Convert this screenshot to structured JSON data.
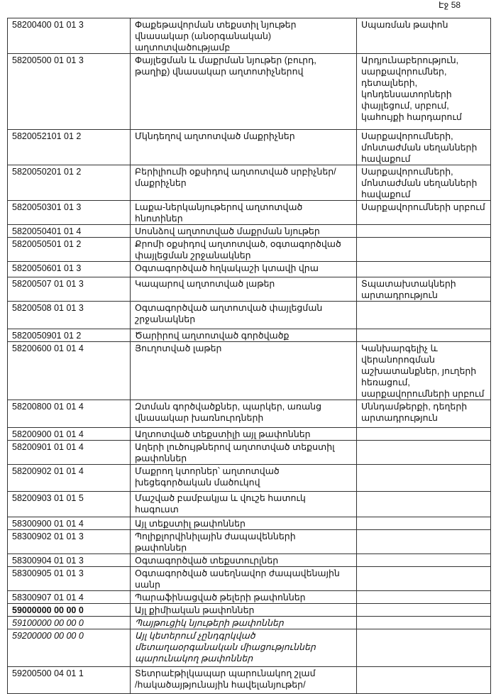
{
  "page_number": "Էջ 58",
  "rows": [
    {
      "code": "58200400 01 01 3",
      "name": "Փաքեթավորման տեքստիլ նյութեր\nվնասակար (անօրգանական)\nաղտոտվածությամբ",
      "activity": "Սպառման թափոն"
    },
    {
      "code": "58200500 01 01 3",
      "name": "Փայլեցման և մաքրման  նյութեր (բուրդ,\nթաղիք) վնասակար աղտոտիչներով",
      "activity": "Արդյունաբերություն,\nսարքավորումներ,\nդետալների,\nկոնդենսատորների\nփայլեցում, սրբում,\nկահույքի հարդարում"
    },
    {
      "code": "5820052101 01 2",
      "name": "Մկնդեղով աղտոտված մաքրիչներ",
      "activity": "Սարքավորումների,\nմոնտաժման սեղանների\nհավաքում"
    },
    {
      "code": "5820050201 01 2",
      "name": "Բերիլիումի օքսիդով աղտոտված սրբիչներ/\nմաքրիչներ",
      "activity": "Սարքավորումների,\nմոնտաժման սեղանների\nհավաքում"
    },
    {
      "code": "5820050301 01 3",
      "name": "Լաքա-ներկանյութերով աղտոտված\nհնոտիներ",
      "activity": "Սարքավորումների սրբում"
    },
    {
      "code": "5820050401 01 4",
      "name": "Սոսնձով  աղտոտված մաքրման նյութեր",
      "activity": ""
    },
    {
      "code": "5820050501 01 2",
      "name": "Քրոմի օքսիդով աղտոտված, օգտագործված\nփայլեցման շրջանակներ",
      "activity": ""
    },
    {
      "code": "5820050601 01 3",
      "name": "Օգտագործված հղկակաշի  կտավի  վրա",
      "activity": ""
    },
    {
      "code": "58200507 01 01 3",
      "name": "Կապարով աղտոտված լաթեր",
      "activity": "Տպատախտակների\nարտադրություն"
    },
    {
      "code": "58200508 01 01 3",
      "name": "Օգտագործված աղտոտված փայլեցման\nշրջանակներ",
      "activity": ""
    },
    {
      "code": "5820050901 01 2",
      "name": "Ծարիրով աղտոտված գործվածք",
      "activity": ""
    },
    {
      "code": "58200600 01 01 4",
      "name": "Յուղոտված լաթեր",
      "activity": "Կանխարգելիչ և\nվերանորոգման\nաշխատանքներ, յուղերի\nհեռացում,\nսարքավորումների սրբում"
    },
    {
      "code": "58200800 01 01 4",
      "name": "Զտման գործվածքներ, պարկեր, առանց\nվնասակար խառնուրդների",
      "activity": "Սննդամթերքի, դեղերի\nարտադրություն"
    },
    {
      "code": "58200900 01 01 4",
      "name": "Աղտոտված տեքստիլի այլ թափոններ",
      "activity": ""
    },
    {
      "code": "58200901 01 01 4",
      "name": "Աղերի լուծույթներով աղտոտված տեքստիլ\nթափոններ",
      "activity": ""
    },
    {
      "code": "58200902 01 01 4",
      "name": "Մաքրող կտորներ՝ աղտոտված\nխեցեգործական մածուկով",
      "activity": ""
    },
    {
      "code": "58200903 01 01 5",
      "name": "Մաշված բամբակյա և վուշե  հատուկ\nհագուստ",
      "activity": ""
    },
    {
      "code": "58300900 01 01 4",
      "name": "Այլ տեքստիլ թափոններ",
      "activity": ""
    },
    {
      "code": "58300902 01 01 3",
      "name": "Պոլիքլորվինիլային ժապավենների\nթափոններ",
      "activity": ""
    },
    {
      "code": "58300904 01 01 3",
      "name": "Օգտագործված տեքստուրլներ",
      "activity": ""
    },
    {
      "code": "58300905 01 01 3",
      "name": "Օգտագործված ասեղնավոր ժապավենային\nսանր",
      "activity": ""
    },
    {
      "code": "58300907 01 01 4",
      "name": "Պարաֆինացված թելերի թափոններ",
      "activity": ""
    },
    {
      "code": "59000000 00 00 0",
      "name": "Այլ քիմիական թափոններ",
      "activity": "",
      "style": "bold"
    },
    {
      "code": "59100000 00 00 0",
      "name": "Պայթուցիկ նյութերի թափոններ",
      "activity": "",
      "style": "it"
    },
    {
      "code": "59200000 00 00 0",
      "name": "Այլ կետերում չընդգրկված\nմետաղաօրգանական միացություններ\nպարունակող թափոններ",
      "activity": "",
      "style": "it"
    },
    {
      "code": "59200500 04 01 1",
      "name": "Տետրաէթիլկապար պարունակող շլամ\n/հակածայթյունային հավելանյութեր/",
      "activity": ""
    }
  ]
}
